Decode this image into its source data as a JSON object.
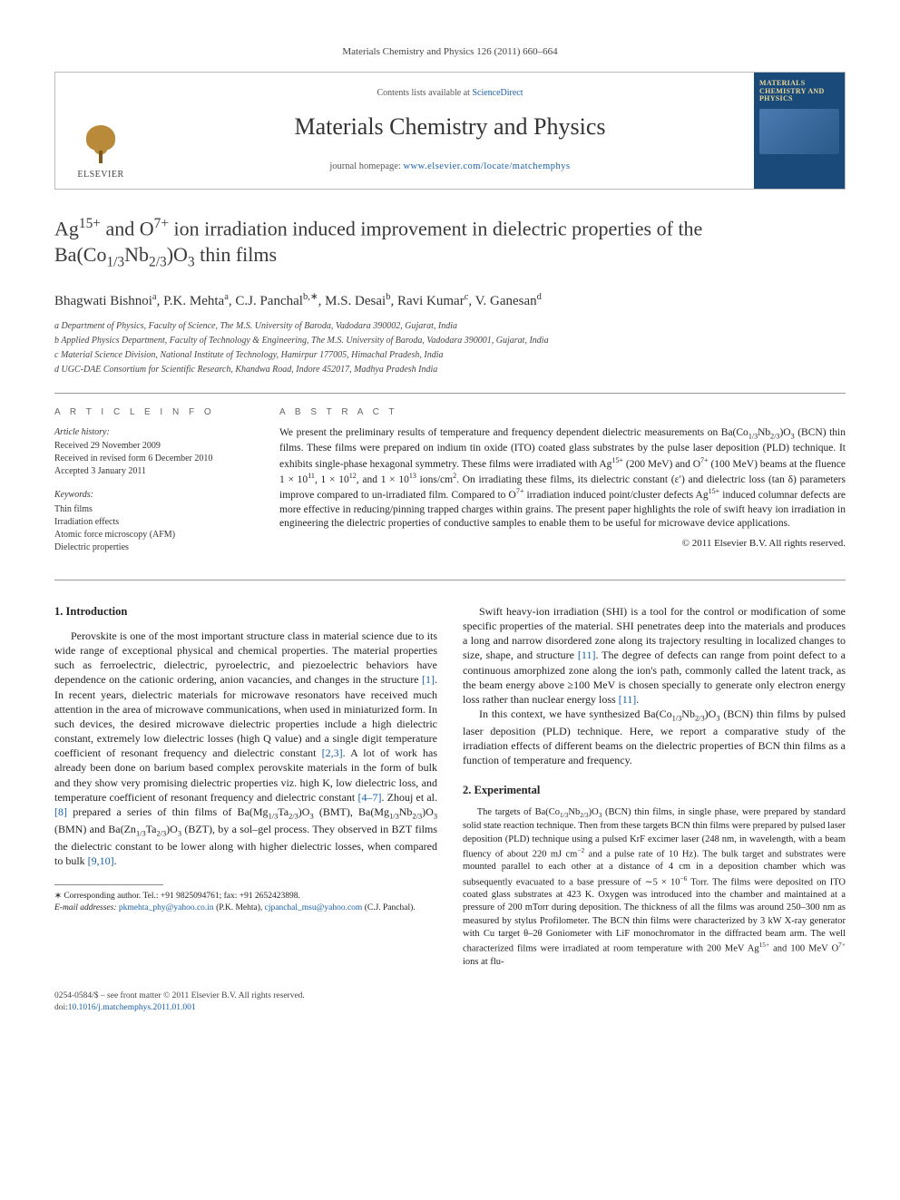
{
  "header": {
    "citation": "Materials Chemistry and Physics 126 (2011) 660–664"
  },
  "banner": {
    "contents_prefix": "Contents lists available at ",
    "contents_link": "ScienceDirect",
    "journal_title": "Materials Chemistry and Physics",
    "homepage_prefix": "journal homepage: ",
    "homepage_url": "www.elsevier.com/locate/matchemphys",
    "publisher_label": "ELSEVIER",
    "cover_title": "MATERIALS CHEMISTRY AND PHYSICS"
  },
  "article": {
    "title_html": "Ag<sup>15+</sup> and O<sup>7+</sup> ion irradiation induced improvement in dielectric properties of the Ba(Co<sub>1/3</sub>Nb<sub>2/3</sub>)O<sub>3</sub> thin films",
    "authors_html": "Bhagwati Bishnoi<sup>a</sup>, P.K. Mehta<sup>a</sup>, C.J. Panchal<sup>b,∗</sup>, M.S. Desai<sup>b</sup>, Ravi Kumar<sup>c</sup>, V. Ganesan<sup>d</sup>",
    "affiliations": [
      "a Department of Physics, Faculty of Science, The M.S. University of Baroda, Vadodara 390002, Gujarat, India",
      "b Applied Physics Department, Faculty of Technology & Engineering, The M.S. University of Baroda, Vadodara 390001, Gujarat, India",
      "c Material Science Division, National Institute of Technology, Hamirpur 177005, Himachal Pradesh, India",
      "d UGC-DAE Consortium for Scientific Research, Khandwa Road, Indore 452017, Madhya Pradesh India"
    ]
  },
  "info": {
    "heading": "A R T I C L E   I N F O",
    "history_label": "Article history:",
    "history": [
      "Received 29 November 2009",
      "Received in revised form 6 December 2010",
      "Accepted 3 January 2011"
    ],
    "keywords_label": "Keywords:",
    "keywords": [
      "Thin films",
      "Irradiation effects",
      "Atomic force microscopy (AFM)",
      "Dielectric properties"
    ]
  },
  "abstract": {
    "heading": "A B S T R A C T",
    "text_html": "We present the preliminary results of temperature and frequency dependent dielectric measurements on Ba(Co<sub>1/3</sub>Nb<sub>2/3</sub>)O<sub>3</sub> (BCN) thin films. These films were prepared on indium tin oxide (ITO) coated glass substrates by the pulse laser deposition (PLD) technique. It exhibits single-phase hexagonal symmetry. These films were irradiated with Ag<sup>15+</sup> (200 MeV) and O<sup>7+</sup> (100 MeV) beams at the fluence 1 × 10<sup>11</sup>, 1 × 10<sup>12</sup>, and 1 × 10<sup>13</sup> ions/cm<sup>2</sup>. On irradiating these films, its dielectric constant (ε′) and dielectric loss (tan δ) parameters improve compared to un-irradiated film. Compared to O<sup>7+</sup> irradiation induced point/cluster defects Ag<sup>15+</sup> induced columnar defects are more effective in reducing/pinning trapped charges within grains. The present paper highlights the role of swift heavy ion irradiation in engineering the dielectric properties of conductive samples to enable them to be useful for microwave device applications.",
    "copyright": "© 2011 Elsevier B.V. All rights reserved."
  },
  "body": {
    "intro_heading": "1.  Introduction",
    "intro_p1_html": "Perovskite is one of the most important structure class in material science due to its wide range of exceptional physical and chemical properties. The material properties such as ferroelectric, dielectric, pyroelectric, and piezoelectric behaviors have dependence on the cationic ordering, anion vacancies, and changes in the structure <span class=\"ref\">[1]</span>. In recent years, dielectric materials for microwave resonators have received much attention in the area of microwave communications, when used in miniaturized form. In such devices, the desired microwave dielectric properties include a high dielectric constant, extremely low dielectric losses (high Q value) and a single digit temperature coefficient of resonant frequency and dielectric constant <span class=\"ref\">[2,3]</span>. A lot of work has already been done on barium based complex perovskite materials in the form of bulk and they show very promising dielectric properties viz. high K, low dielectric loss, and temperature coefficient of resonant frequency and dielectric constant <span class=\"ref\">[4–7]</span>. Zhouj et al. <span class=\"ref\">[8]</span> prepared a series of thin films of Ba(Mg<sub>1/3</sub>Ta<sub>2/3</sub>)O<sub>3</sub> (BMT), Ba(Mg<sub>1/3</sub>Nb<sub>2/3</sub>)O<sub>3</sub> (BMN) and Ba(Zn<sub>1/3</sub>Ta<sub>2/3</sub>)O<sub>3</sub> (BZT), by a sol–gel process. They observed in BZT films the dielectric constant to be lower along with higher dielectric losses, when compared to bulk <span class=\"ref\">[9,10]</span>.",
    "col2_p1_html": "Swift heavy-ion irradiation (SHI) is a tool for the control or modification of some specific properties of the material. SHI penetrates deep into the materials and produces a long and narrow disordered zone along its trajectory resulting in localized changes to size, shape, and structure <span class=\"ref\">[11]</span>. The degree of defects can range from point defect to a continuous amorphized zone along the ion's path, commonly called the latent track, as the beam energy above ≥100 MeV is chosen specially to generate only electron energy loss rather than nuclear energy loss <span class=\"ref\">[11]</span>.",
    "col2_p2_html": "In this context, we have synthesized Ba(Co<sub>1/3</sub>Nb<sub>2/3</sub>)O<sub>3</sub> (BCN) thin films by pulsed laser deposition (PLD) technique. Here, we report a comparative study of the irradiation effects of different beams on the dielectric properties of BCN thin films as a function of temperature and frequency.",
    "exp_heading": "2.  Experimental",
    "exp_p1_html": "The targets of Ba(Co<sub>1/3</sub>Nb<sub>2/3</sub>)O<sub>3</sub> (BCN) thin films, in single phase, were prepared by standard solid state reaction technique. Then from these targets BCN thin films were prepared by pulsed laser deposition (PLD) technique using a pulsed KrF excimer laser (248 nm, in wavelength, with a beam fluency of about 220 mJ cm<sup>−2</sup> and a pulse rate of 10 Hz). The bulk target and substrates were mounted parallel to each other at a distance of 4 cm in a deposition chamber which was subsequently evacuated to a base pressure of ∼5 × 10<sup>−6</sup> Torr. The films were deposited on ITO coated glass substrates at 423 K. Oxygen was introduced into the chamber and maintained at a pressure of 200 mTorr during deposition. The thickness of all the films was around 250–300 nm as measured by stylus Profilometer. The BCN thin films were characterized by 3 kW X-ray generator with Cu target θ–2θ Goniometer with LiF monochromator in the diffracted beam arm. The well characterized films were irradiated at room temperature with 200 MeV Ag<sup>15+</sup> and 100 MeV O<sup>7+</sup> ions at flu-"
  },
  "footnote": {
    "corr": "∗ Corresponding author. Tel.: +91 9825094761; fax: +91 2652423898.",
    "email_label": "E-mail addresses:",
    "email1": "pkmehta_phy@yahoo.co.in",
    "email1_who": " (P.K. Mehta), ",
    "email2": "cjpanchal_msu@yahoo.com",
    "email2_who": " (C.J. Panchal)."
  },
  "footer": {
    "line1": "0254-0584/$ – see front matter © 2011 Elsevier B.V. All rights reserved.",
    "doi_label": "doi:",
    "doi": "10.1016/j.matchemphys.2011.01.001"
  },
  "colors": {
    "link": "#1a5fa8",
    "rule": "#999999",
    "cover_bg": "#1a4a7a",
    "cover_title": "#e8d898"
  }
}
